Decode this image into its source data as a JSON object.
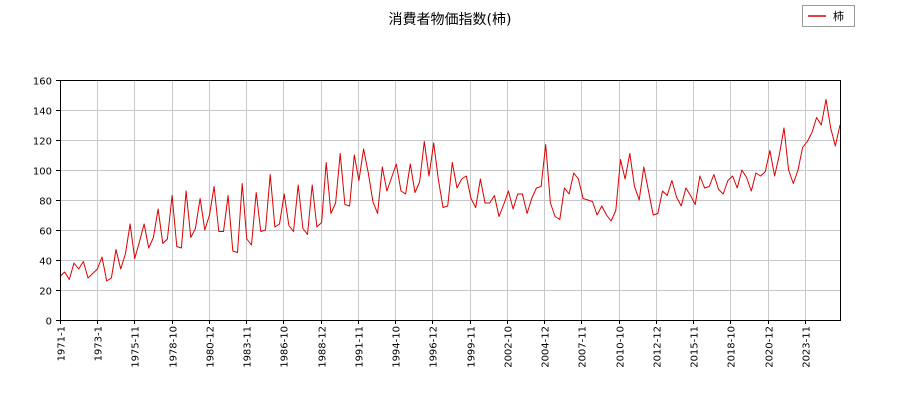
{
  "chart_data": {
    "type": "line",
    "title": "消費者物価指数(柿)",
    "xlabel": "",
    "ylabel": "",
    "ylim": [
      0,
      160
    ],
    "yticks": [
      0,
      20,
      40,
      60,
      80,
      100,
      120,
      140,
      160
    ],
    "xtick_labels": [
      "1971-1",
      "1973-1",
      "1975-11",
      "1978-10",
      "1980-12",
      "1983-11",
      "1986-10",
      "1988-12",
      "1991-11",
      "1994-10",
      "1996-12",
      "1999-11",
      "2002-10",
      "2004-12",
      "2007-11",
      "2010-10",
      "2012-12",
      "2015-11",
      "2018-10",
      "2020-12",
      "2023-11"
    ],
    "grid": true,
    "legend_position": "top-right",
    "series": [
      {
        "name": "柿",
        "color": "#dd0000",
        "values": [
          29,
          32,
          27,
          38,
          34,
          39,
          28,
          31,
          34,
          42,
          26,
          28,
          47,
          34,
          44,
          64,
          41,
          52,
          64,
          48,
          55,
          74,
          51,
          54,
          83,
          49,
          48,
          86,
          55,
          61,
          81,
          60,
          70,
          89,
          59,
          59,
          83,
          46,
          45,
          91,
          54,
          50,
          85,
          59,
          60,
          97,
          62,
          64,
          84,
          63,
          59,
          90,
          61,
          57,
          90,
          62,
          65,
          105,
          71,
          78,
          111,
          77,
          76,
          110,
          93,
          114,
          98,
          79,
          71,
          102,
          86,
          95,
          104,
          86,
          84,
          104,
          85,
          92,
          119,
          96,
          118,
          94,
          75,
          76,
          105,
          88,
          94,
          96,
          81,
          75,
          94,
          78,
          78,
          83,
          69,
          77,
          86,
          74,
          84,
          84,
          71,
          81,
          88,
          89,
          117,
          78,
          69,
          67,
          88,
          84,
          98,
          94,
          81,
          80,
          79,
          70,
          76,
          70,
          66,
          73,
          107,
          94,
          111,
          89,
          80,
          102,
          86,
          70,
          71,
          86,
          83,
          93,
          82,
          76,
          88,
          83,
          77,
          96,
          88,
          89,
          97,
          87,
          84,
          93,
          96,
          88,
          100,
          95,
          86,
          98,
          96,
          99,
          113,
          96,
          110,
          128,
          100,
          91,
          100,
          115,
          119,
          125,
          135,
          130,
          147,
          128,
          116,
          130
        ]
      }
    ]
  }
}
